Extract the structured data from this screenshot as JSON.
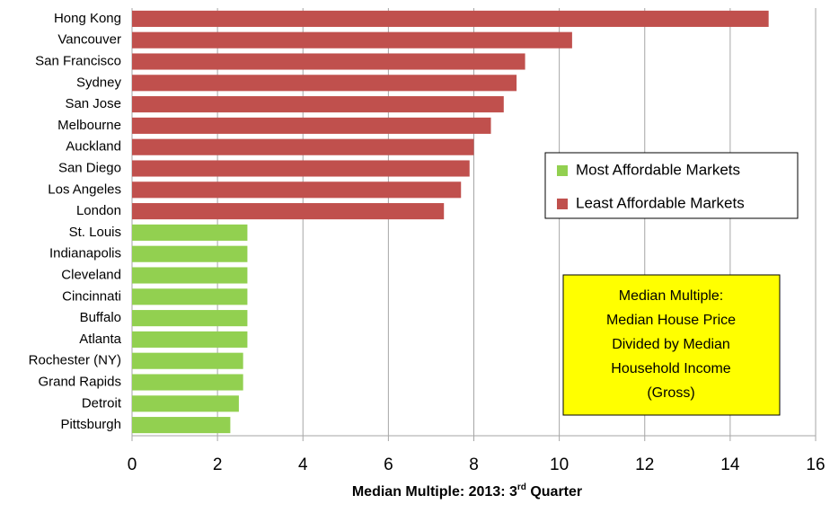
{
  "chart_data": {
    "type": "bar",
    "orientation": "horizontal",
    "categories": [
      "Hong Kong",
      "Vancouver",
      "San Francisco",
      "Sydney",
      "San Jose",
      "Melbourne",
      "Auckland",
      "San Diego",
      "Los Angeles",
      "London",
      "St. Louis",
      "Indianapolis",
      "Cleveland",
      "Cincinnati",
      "Buffalo",
      "Atlanta",
      "Rochester (NY)",
      "Grand Rapids",
      "Detroit",
      "Pittsburgh"
    ],
    "series": [
      {
        "name": "Most Affordable Markets",
        "color": "#92d050",
        "values": [
          null,
          null,
          null,
          null,
          null,
          null,
          null,
          null,
          null,
          null,
          2.7,
          2.7,
          2.7,
          2.7,
          2.7,
          2.7,
          2.6,
          2.6,
          2.5,
          2.3
        ]
      },
      {
        "name": "Least Affordable Markets",
        "color": "#c0504d",
        "values": [
          14.9,
          10.3,
          9.2,
          9.0,
          8.7,
          8.4,
          8.0,
          7.9,
          7.7,
          7.3,
          null,
          null,
          null,
          null,
          null,
          null,
          null,
          null,
          null,
          null
        ]
      }
    ],
    "xlim": [
      0,
      16
    ],
    "xticks": [
      0,
      2,
      4,
      6,
      8,
      10,
      12,
      14,
      16
    ],
    "grid": true,
    "x_label": [
      "Median Multiple: 2013: 3",
      "rd",
      " Quarter"
    ],
    "annotation": [
      "Median Multiple:",
      "Median House Price",
      "Divided by Median",
      "Household Income",
      "(Gross)"
    ]
  }
}
